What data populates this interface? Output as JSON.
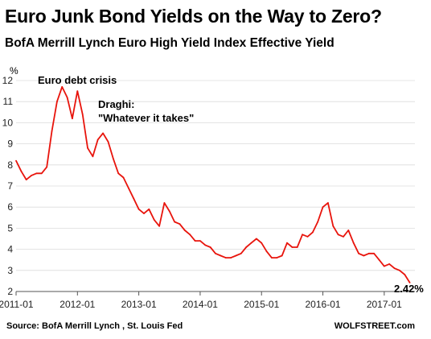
{
  "title": "Euro Junk Bond Yields on the Way to Zero?",
  "subtitle": "BofA Merrill Lynch Euro High Yield Index Effective Yield",
  "source": "Source: BofA Merrill Lynch , St. Louis Fed",
  "brand": "WOLFSTREET.com",
  "colors": {
    "line": "#e8140c",
    "grid": "#dcdcdc",
    "axis": "#555555",
    "text": "#000000"
  },
  "chart_data": {
    "type": "line",
    "title": "BofA Merrill Lynch Euro High Yield Index Effective Yield",
    "ylabel": "%",
    "xlabel": "",
    "ylim": [
      2,
      12
    ],
    "xlim": [
      "2011-01",
      "2017-07"
    ],
    "yticks": [
      "2",
      "3",
      "4",
      "5",
      "6",
      "7",
      "8",
      "9",
      "10",
      "11",
      "12"
    ],
    "xticks": [
      "2011-01",
      "2012-01",
      "2013-01",
      "2014-01",
      "2015-01",
      "2016-01",
      "2017-01"
    ],
    "grid": "horizontal",
    "annotations": [
      {
        "text": "Euro debt crisis",
        "x": "2011-09",
        "y": 11.8
      },
      {
        "text": "Draghi:",
        "x": "2012-07",
        "y": 10.8
      },
      {
        "text": "\"Whatever it takes\"",
        "x": "2012-07",
        "y": 10.1
      },
      {
        "text": "2.42%",
        "x": "2017-06",
        "y": 2.42
      }
    ],
    "series": [
      {
        "name": "",
        "x": [
          "2011-01",
          "2011-02",
          "2011-03",
          "2011-04",
          "2011-05",
          "2011-06",
          "2011-07",
          "2011-08",
          "2011-09",
          "2011-10",
          "2011-11",
          "2011-12",
          "2012-01",
          "2012-02",
          "2012-03",
          "2012-04",
          "2012-05",
          "2012-06",
          "2012-07",
          "2012-08",
          "2012-09",
          "2012-10",
          "2012-11",
          "2012-12",
          "2013-01",
          "2013-02",
          "2013-03",
          "2013-04",
          "2013-05",
          "2013-06",
          "2013-07",
          "2013-08",
          "2013-09",
          "2013-10",
          "2013-11",
          "2013-12",
          "2014-01",
          "2014-02",
          "2014-03",
          "2014-04",
          "2014-05",
          "2014-06",
          "2014-07",
          "2014-08",
          "2014-09",
          "2014-10",
          "2014-11",
          "2014-12",
          "2015-01",
          "2015-02",
          "2015-03",
          "2015-04",
          "2015-05",
          "2015-06",
          "2015-07",
          "2015-08",
          "2015-09",
          "2015-10",
          "2015-11",
          "2015-12",
          "2016-01",
          "2016-02",
          "2016-03",
          "2016-04",
          "2016-05",
          "2016-06",
          "2016-07",
          "2016-08",
          "2016-09",
          "2016-10",
          "2016-11",
          "2016-12",
          "2017-01",
          "2017-02",
          "2017-03",
          "2017-04",
          "2017-05",
          "2017-06"
        ],
        "values": [
          8.2,
          7.7,
          7.3,
          7.5,
          7.6,
          7.6,
          7.9,
          9.6,
          11.0,
          11.7,
          11.2,
          10.2,
          11.5,
          10.4,
          8.8,
          8.4,
          9.2,
          9.5,
          9.1,
          8.3,
          7.6,
          7.4,
          6.9,
          6.4,
          5.9,
          5.7,
          5.9,
          5.4,
          5.1,
          6.2,
          5.8,
          5.3,
          5.2,
          4.9,
          4.7,
          4.4,
          4.4,
          4.2,
          4.1,
          3.8,
          3.7,
          3.6,
          3.6,
          3.7,
          3.8,
          4.1,
          4.3,
          4.5,
          4.3,
          3.9,
          3.6,
          3.6,
          3.7,
          4.3,
          4.1,
          4.1,
          4.7,
          4.6,
          4.8,
          5.3,
          6.0,
          6.2,
          5.1,
          4.7,
          4.6,
          4.9,
          4.3,
          3.8,
          3.7,
          3.8,
          3.8,
          3.5,
          3.2,
          3.3,
          3.1,
          3.0,
          2.8,
          2.42
        ]
      }
    ]
  }
}
